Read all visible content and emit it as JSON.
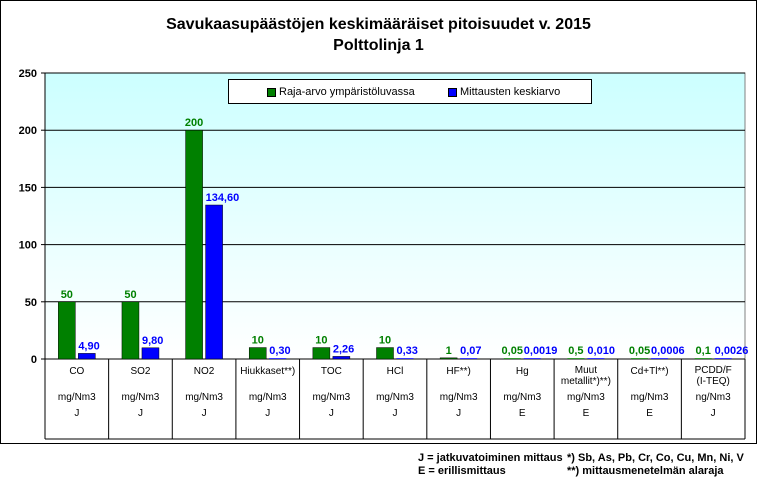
{
  "title_line1": "Savukaasupäästöjen keskimääräiset pitoisuudet v. 2015",
  "title_line2": "Polttolinja 1",
  "legend": {
    "limit": "Raja-arvo ympäristöluvassa",
    "measured": "Mittausten keskiarvo"
  },
  "footnotes": {
    "j": "J = jatkuvatoiminen mittaus",
    "e": "E = erillismittaus",
    "metals": "*) Sb, As, Pb, Cr, Co, Cu, Mn, Ni, V",
    "detection": "**) mittausmenetelmän alaraja"
  },
  "colors": {
    "limit": "#008000",
    "measured": "#0000ff",
    "plot_top": "#ccffff",
    "plot_bottom": "#ffffff"
  },
  "chart_data": {
    "type": "bar",
    "ylim": [
      0,
      250
    ],
    "yticks": [
      "0",
      "50",
      "100",
      "150",
      "200",
      "250"
    ],
    "categories": [
      {
        "name": [
          "CO"
        ],
        "unit": "mg/Nm3",
        "method": "J"
      },
      {
        "name": [
          "SO2"
        ],
        "unit": "mg/Nm3",
        "method": "J"
      },
      {
        "name": [
          "NO2"
        ],
        "unit": "mg/Nm3",
        "method": "J"
      },
      {
        "name": [
          "Hiukkaset**)"
        ],
        "unit": "mg/Nm3",
        "method": "J"
      },
      {
        "name": [
          "TOC"
        ],
        "unit": "mg/Nm3",
        "method": "J"
      },
      {
        "name": [
          "HCl"
        ],
        "unit": "mg/Nm3",
        "method": "J"
      },
      {
        "name": [
          "HF**)"
        ],
        "unit": "mg/Nm3",
        "method": "J"
      },
      {
        "name": [
          "Hg"
        ],
        "unit": "mg/Nm3",
        "method": "E"
      },
      {
        "name": [
          "Muut",
          "metallit*)**)"
        ],
        "unit": "mg/Nm3",
        "method": "E"
      },
      {
        "name": [
          "Cd+Tl**)"
        ],
        "unit": "mg/Nm3",
        "method": "E"
      },
      {
        "name": [
          "PCDD/F",
          "(I-TEQ)"
        ],
        "unit": "ng/Nm3",
        "method": "J"
      }
    ],
    "series": [
      {
        "name": "Raja-arvo ympäristöluvassa",
        "values": [
          50,
          50,
          200,
          10,
          10,
          10,
          1,
          0.05,
          0.5,
          0.05,
          0.1
        ],
        "labels": [
          "50",
          "50",
          "200",
          "10",
          "10",
          "10",
          "1",
          "0,05",
          "0,5",
          "0,05",
          "0,1"
        ]
      },
      {
        "name": "Mittausten keskiarvo",
        "values": [
          4.9,
          9.8,
          134.6,
          0.3,
          2.26,
          0.33,
          0.07,
          0.0019,
          0.01,
          0.0006,
          0.0026
        ],
        "labels": [
          "4,90",
          "9,80",
          "134,60",
          "0,30",
          "2,26",
          "0,33",
          "0,07",
          "0,0019",
          "0,010",
          "0,0006",
          "0,0026"
        ]
      }
    ]
  }
}
